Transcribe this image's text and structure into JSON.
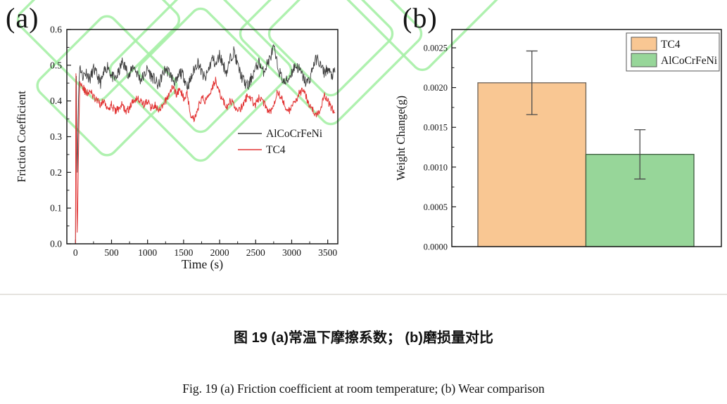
{
  "figure": {
    "panel_a_label": "(a)",
    "panel_b_label": "(b)",
    "caption_cn": "图  19    (a)常温下摩擦系数；  (b)磨损量对比",
    "caption_en": "Fig. 19 (a) Friction coefficient at room temperature; (b) Wear comparison"
  },
  "watermark": {
    "color": "#a6efa6"
  },
  "chart_data": [
    {
      "id": "friction",
      "type": "line",
      "title": "",
      "xlabel": "Time (s)",
      "ylabel": "Friction Coefficient",
      "xlim": [
        -120,
        3640
      ],
      "ylim": [
        0,
        0.6
      ],
      "xticks": [
        0,
        500,
        1000,
        1500,
        2000,
        2500,
        3000,
        3500
      ],
      "xminor_step": 250,
      "yticks": [
        0,
        0.1,
        0.2,
        0.3,
        0.4,
        0.5,
        0.6
      ],
      "ytick_labels": [
        "0.0",
        "0.1",
        "0.2",
        "0.3",
        "0.4",
        "0.5",
        "0.6"
      ],
      "yminor_step": 0.05,
      "grid": false,
      "legend_position": "inside-right-middle",
      "series": [
        {
          "name": "AlCoCrFeNi",
          "color": "#3c3c3c",
          "line_width": 0.9,
          "noise_amplitude": 0.016,
          "seed": 11,
          "x": [
            0,
            6,
            12,
            18,
            25,
            32,
            45,
            60,
            80,
            100,
            150,
            200,
            250,
            300,
            350,
            400,
            450,
            500,
            550,
            600,
            650,
            700,
            750,
            800,
            850,
            900,
            950,
            1000,
            1050,
            1100,
            1150,
            1200,
            1250,
            1300,
            1350,
            1400,
            1450,
            1500,
            1550,
            1600,
            1650,
            1700,
            1750,
            1800,
            1850,
            1900,
            1950,
            2000,
            2050,
            2100,
            2150,
            2200,
            2250,
            2300,
            2350,
            2400,
            2450,
            2500,
            2550,
            2600,
            2650,
            2700,
            2750,
            2800,
            2850,
            2900,
            2950,
            3000,
            3050,
            3100,
            3150,
            3200,
            3250,
            3300,
            3350,
            3400,
            3450,
            3500,
            3550,
            3600
          ],
          "y": [
            0.0,
            0.44,
            0.47,
            0.3,
            0.18,
            0.3,
            0.44,
            0.5,
            0.48,
            0.47,
            0.48,
            0.46,
            0.49,
            0.47,
            0.45,
            0.48,
            0.5,
            0.47,
            0.46,
            0.48,
            0.51,
            0.49,
            0.47,
            0.5,
            0.48,
            0.46,
            0.47,
            0.49,
            0.47,
            0.46,
            0.44,
            0.47,
            0.49,
            0.48,
            0.46,
            0.45,
            0.48,
            0.47,
            0.44,
            0.46,
            0.49,
            0.51,
            0.48,
            0.46,
            0.49,
            0.52,
            0.5,
            0.53,
            0.5,
            0.48,
            0.52,
            0.54,
            0.5,
            0.47,
            0.45,
            0.44,
            0.47,
            0.49,
            0.51,
            0.48,
            0.5,
            0.52,
            0.55,
            0.5,
            0.47,
            0.45,
            0.46,
            0.48,
            0.5,
            0.49,
            0.47,
            0.45,
            0.46,
            0.5,
            0.52,
            0.5,
            0.48,
            0.49,
            0.47,
            0.48
          ]
        },
        {
          "name": "TC4",
          "color": "#e23434",
          "line_width": 1.0,
          "noise_amplitude": 0.011,
          "seed": 29,
          "x": [
            0,
            5,
            10,
            16,
            22,
            30,
            45,
            60,
            80,
            100,
            150,
            200,
            250,
            300,
            350,
            400,
            450,
            500,
            550,
            600,
            650,
            700,
            750,
            800,
            850,
            900,
            950,
            1000,
            1050,
            1100,
            1150,
            1200,
            1250,
            1300,
            1350,
            1400,
            1450,
            1500,
            1550,
            1600,
            1650,
            1700,
            1750,
            1800,
            1850,
            1900,
            1950,
            2000,
            2050,
            2100,
            2150,
            2200,
            2250,
            2300,
            2350,
            2400,
            2450,
            2500,
            2550,
            2600,
            2650,
            2700,
            2750,
            2800,
            2850,
            2900,
            2950,
            3000,
            3050,
            3100,
            3150,
            3200,
            3250,
            3300,
            3350,
            3400,
            3450,
            3500,
            3550,
            3600
          ],
          "y": [
            0.0,
            0.49,
            0.42,
            0.2,
            0.01,
            0.1,
            0.3,
            0.46,
            0.45,
            0.44,
            0.42,
            0.43,
            0.41,
            0.4,
            0.39,
            0.4,
            0.38,
            0.39,
            0.37,
            0.38,
            0.39,
            0.37,
            0.38,
            0.4,
            0.41,
            0.4,
            0.39,
            0.4,
            0.38,
            0.39,
            0.37,
            0.38,
            0.4,
            0.42,
            0.44,
            0.42,
            0.43,
            0.41,
            0.42,
            0.36,
            0.35,
            0.38,
            0.41,
            0.4,
            0.42,
            0.44,
            0.46,
            0.42,
            0.4,
            0.38,
            0.4,
            0.39,
            0.37,
            0.38,
            0.4,
            0.42,
            0.4,
            0.39,
            0.41,
            0.4,
            0.38,
            0.37,
            0.39,
            0.43,
            0.41,
            0.39,
            0.37,
            0.38,
            0.4,
            0.42,
            0.43,
            0.41,
            0.39,
            0.37,
            0.36,
            0.38,
            0.42,
            0.4,
            0.38,
            0.37
          ]
        }
      ]
    },
    {
      "id": "wear",
      "type": "bar",
      "title": "",
      "xlabel": "",
      "ylabel": "Weight Change(g)",
      "ylim": [
        0,
        0.00273
      ],
      "yticks": [
        0,
        0.0005,
        0.001,
        0.0015,
        0.002,
        0.0025
      ],
      "ytick_labels": [
        "0.0000",
        "0.0005",
        "0.0010",
        "0.0015",
        "0.0020",
        "0.0025"
      ],
      "yminor_step": 0.00025,
      "grid": false,
      "legend_position": "inside-top-right",
      "categories": [
        "TC4",
        "AlCoCrFeNi"
      ],
      "values": [
        0.00206,
        0.00116
      ],
      "errors": [
        0.0004,
        0.00031
      ],
      "bar_colors": [
        "#f9c793",
        "#97d699"
      ],
      "bar_edge_colors": [
        "#6b6257",
        "#3d5c3f"
      ],
      "error_color": "#4a4a4a",
      "legend": [
        "TC4",
        "AlCoCrFeNi"
      ]
    }
  ]
}
